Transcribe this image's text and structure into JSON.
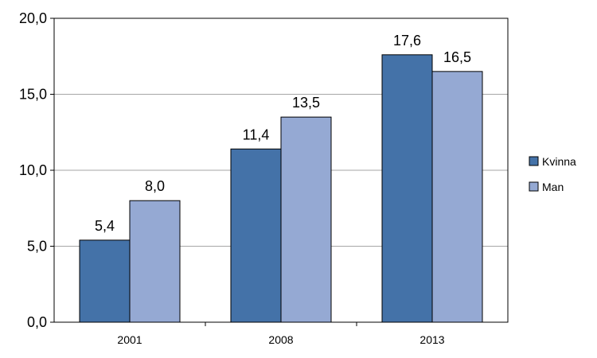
{
  "chart_data": {
    "type": "bar",
    "categories": [
      "2001",
      "2008",
      "2013"
    ],
    "series": [
      {
        "name": "Kvinna",
        "values": [
          5.4,
          11.4,
          17.6
        ],
        "value_labels": [
          "5,4",
          "11,4",
          "17,6"
        ],
        "color": "#4472A8"
      },
      {
        "name": "Man",
        "values": [
          8.0,
          13.5,
          16.5
        ],
        "value_labels": [
          "8,0",
          "13,5",
          "16,5"
        ],
        "color": "#95A9D3"
      }
    ],
    "ylim": [
      0,
      20
    ],
    "yticks": [
      0,
      5,
      10,
      15,
      20
    ],
    "ytick_labels": [
      "0,0",
      "5,0",
      "10,0",
      "15,0",
      "20,0"
    ],
    "grid": true,
    "legend": "right",
    "colors": {
      "gridline": "#A6A6A6",
      "bar_border": "#000000",
      "axis": "#000000"
    }
  }
}
